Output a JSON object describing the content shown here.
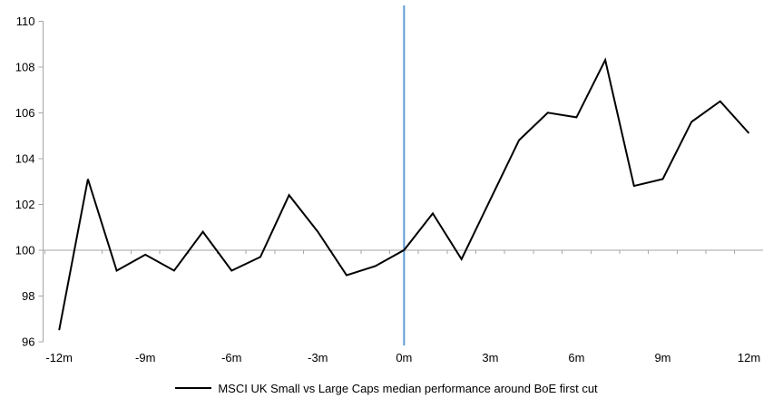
{
  "chart_data": {
    "type": "line",
    "title": "",
    "xlabel": "",
    "ylabel": "",
    "x_months": [
      -12,
      -11,
      -10,
      -9,
      -8,
      -7,
      -6,
      -5,
      -4,
      -3,
      -2,
      -1,
      0,
      1,
      2,
      3,
      4,
      5,
      6,
      7,
      8,
      9,
      10,
      11,
      12
    ],
    "series": [
      {
        "name": "MSCI UK Small vs Large Caps median performance around BoE first cut",
        "color": "#000000",
        "values": [
          96.5,
          103.1,
          99.1,
          99.8,
          99.1,
          100.8,
          99.1,
          99.7,
          102.4,
          100.8,
          98.9,
          99.3,
          100.0,
          101.6,
          99.6,
          102.2,
          104.8,
          106.0,
          105.8,
          108.3,
          102.8,
          103.1,
          105.6,
          106.5,
          105.1
        ]
      }
    ],
    "ylim": [
      96,
      110
    ],
    "yticks": [
      96,
      98,
      100,
      102,
      104,
      106,
      108,
      110
    ],
    "ytick_labels": [
      "96",
      "98",
      "100",
      "102",
      "104",
      "106",
      "108",
      "110"
    ],
    "xticks_at": [
      -12,
      -9,
      -6,
      -3,
      0,
      3,
      6,
      9,
      12
    ],
    "xtick_labels": [
      "-12m",
      "-9m",
      "-6m",
      "-3m",
      "0m",
      "3m",
      "6m",
      "9m",
      "12m"
    ],
    "baseline_value": 100,
    "event_line_at_month": 0,
    "grid": "off",
    "colors": {
      "series": "#000000",
      "event_line": "#5B9BD5",
      "baseline": "#A6A6A6",
      "axis": "#A6A6A6",
      "text": "#000000"
    },
    "legend": {
      "position": "bottom-center",
      "label": "MSCI UK Small vs Large Caps median performance around BoE first cut"
    }
  }
}
